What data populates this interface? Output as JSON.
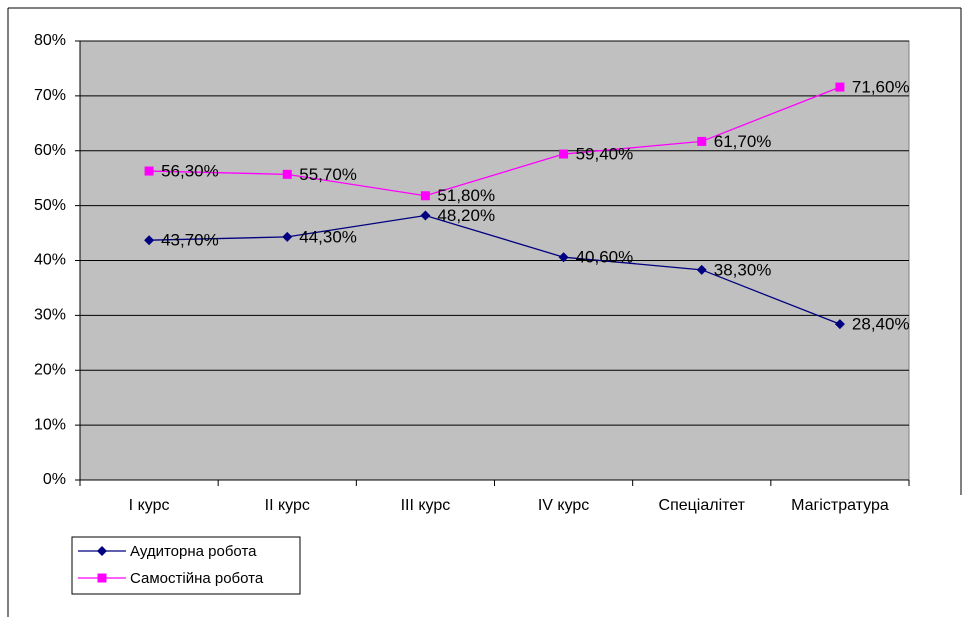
{
  "chart_data": {
    "type": "line",
    "categories": [
      "I курс",
      "II курс",
      "III курс",
      "IV курс",
      "Спеціалітет",
      "Магістратура"
    ],
    "series": [
      {
        "name": "Аудиторна робота",
        "color": "#000080",
        "marker": "diamond",
        "values": [
          43.7,
          44.3,
          48.2,
          40.6,
          38.3,
          28.4
        ],
        "value_labels": [
          "43,70%",
          "44,30%",
          "48,20%",
          "40,60%",
          "38,30%",
          "28,40%"
        ]
      },
      {
        "name": "Самостійна робота",
        "color": "#ff00ff",
        "marker": "square",
        "values": [
          56.3,
          55.7,
          51.8,
          59.4,
          61.7,
          71.6
        ],
        "value_labels": [
          "56,30%",
          "55,70%",
          "51,80%",
          "59,40%",
          "61,70%",
          "71,60%"
        ]
      }
    ],
    "ylim": [
      0,
      80
    ],
    "yticks": [
      {
        "value": 0,
        "label": "0%"
      },
      {
        "value": 10,
        "label": "10%"
      },
      {
        "value": 20,
        "label": "20%"
      },
      {
        "value": 30,
        "label": "30%"
      },
      {
        "value": 40,
        "label": "40%"
      },
      {
        "value": 50,
        "label": "50%"
      },
      {
        "value": 60,
        "label": "60%"
      },
      {
        "value": 70,
        "label": "70%"
      },
      {
        "value": 80,
        "label": "80%"
      }
    ],
    "grid": true,
    "plot_background": "#c0c0c0",
    "legend": "bottom-left"
  }
}
